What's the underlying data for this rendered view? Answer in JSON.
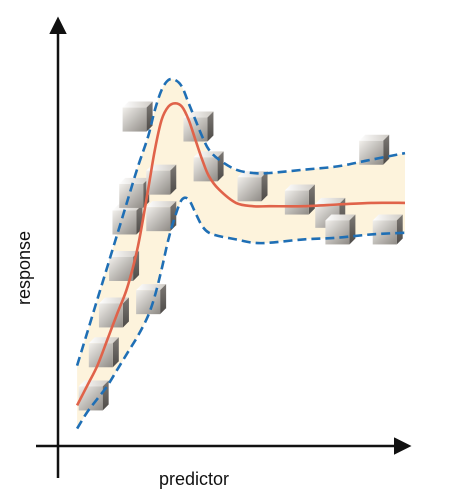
{
  "chart_data": {
    "type": "scatter",
    "title": "",
    "xlabel": "predictor",
    "ylabel": "response",
    "xlim": [
      0,
      100
    ],
    "ylim": [
      0,
      100
    ],
    "grid": false,
    "legend": "none",
    "colors": {
      "axes": "#111111",
      "fit_line": "#e0634a",
      "band_edge": "#1f6fb5",
      "band_fill": "#fdf3dc",
      "marker": "#a8a29a"
    },
    "series": [
      {
        "kind": "points",
        "marker": "cube",
        "x": [
          7,
          10,
          13,
          16,
          17,
          19,
          20,
          24,
          27,
          27,
          38,
          41,
          54,
          68,
          77,
          80,
          90,
          94
        ],
        "y": [
          8,
          21,
          33,
          47,
          61,
          69,
          92,
          37,
          62,
          73,
          89,
          77,
          71,
          67,
          63,
          58,
          82,
          58
        ]
      },
      {
        "kind": "fit_line",
        "x": [
          3,
          6,
          9,
          12,
          15,
          18,
          21,
          24,
          26,
          28,
          30,
          32,
          34,
          36,
          38,
          40,
          42,
          45,
          50,
          55,
          60,
          70,
          80,
          90,
          100
        ],
        "y": [
          5,
          11,
          17,
          25,
          33,
          41,
          53,
          70,
          82,
          91,
          95,
          96,
          95,
          91,
          85,
          79,
          74,
          70,
          66,
          65,
          65,
          65,
          65.5,
          66,
          66
        ]
      },
      {
        "kind": "band_upper",
        "x": [
          3,
          6,
          9,
          12,
          15,
          18,
          21,
          24,
          26,
          28,
          30,
          32,
          34,
          36,
          38,
          40,
          42,
          45,
          50,
          55,
          60,
          70,
          80,
          90,
          100
        ],
        "y": [
          17,
          27,
          37,
          47,
          57,
          67,
          77,
          86,
          94,
          100,
          103,
          103,
          101,
          96,
          91,
          86,
          82,
          79,
          76,
          75,
          75,
          76,
          77,
          79,
          81
        ]
      },
      {
        "kind": "band_lower",
        "x": [
          3,
          6,
          9,
          12,
          15,
          18,
          21,
          24,
          26,
          28,
          30,
          32,
          34,
          36,
          38,
          40,
          42,
          45,
          50,
          55,
          60,
          70,
          80,
          90,
          100
        ],
        "y": [
          -2,
          3,
          7,
          11,
          16,
          21,
          26,
          32,
          38,
          46,
          55,
          62,
          67,
          67,
          63,
          59,
          57,
          56,
          55,
          54,
          54,
          55,
          55.5,
          56.5,
          57
        ]
      }
    ]
  }
}
